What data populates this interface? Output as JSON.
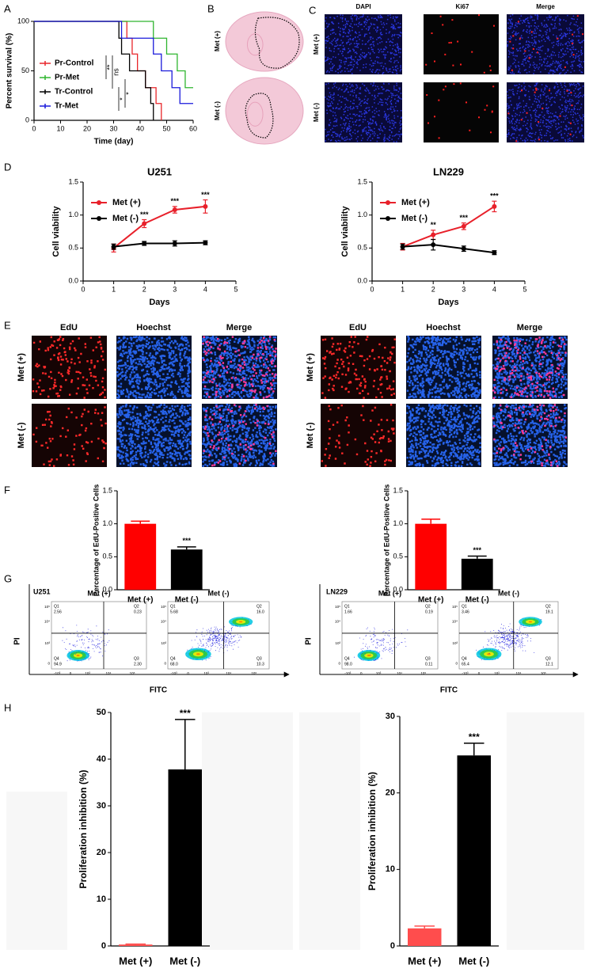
{
  "panel_labels": [
    "A",
    "B",
    "C",
    "D",
    "E",
    "F",
    "G",
    "H"
  ],
  "brain_images": {
    "rows": [
      "Met (+)",
      "Met (-)"
    ]
  },
  "ki67_images": {
    "columns": [
      "DAPI",
      "Ki67",
      "Merge"
    ],
    "rows": [
      "Met (+)",
      "Met (-)"
    ]
  },
  "edu_images": {
    "columns": [
      "EdU",
      "Hoechst",
      "Merge"
    ],
    "rows": [
      "Met (+)",
      "Met (-)"
    ]
  },
  "flow_cytometry": {
    "xlabel": "FITC",
    "ylabel": "PI",
    "quadrants": [
      "Q1",
      "Q2",
      "Q3",
      "Q4"
    ],
    "xticks": [
      "-10³",
      "0",
      "10³",
      "10⁴",
      "10⁵"
    ],
    "yticks": [
      "10⁵",
      "10⁴",
      "10³",
      "0"
    ],
    "groups": [
      {
        "name": "U251",
        "plots": [
          {
            "title": "Met (+)",
            "values": [
              "2.56",
              "0.23",
              "2.30",
              "94.9"
            ]
          },
          {
            "title": "Met (-)",
            "values": [
              "5.68",
              "16.0",
              "10.3",
              "68.0"
            ]
          }
        ]
      },
      {
        "name": "LN229",
        "plots": [
          {
            "title": "Met (+)",
            "values": [
              "1.66",
              "0.19",
              "0.11",
              "98.0"
            ]
          },
          {
            "title": "Met (-)",
            "values": [
              "3.46",
              "19.1",
              "12.1",
              "65.4"
            ]
          }
        ]
      }
    ]
  },
  "chart_data": [
    {
      "type": "step",
      "xlabel": "Time (day)",
      "ylabel": "Percent survival (%)",
      "xlim": [
        0,
        60
      ],
      "xticks": [
        0,
        10,
        20,
        30,
        40,
        50,
        60
      ],
      "ylim": [
        0,
        100
      ],
      "yticks": [
        0,
        50,
        100
      ],
      "legend": "lower left",
      "series": [
        {
          "name": "Pr-Control",
          "color": "#e8262a",
          "x": [
            0,
            35,
            35,
            37,
            37,
            39,
            39,
            42,
            42,
            46,
            46,
            48,
            48
          ],
          "values": [
            100,
            100,
            83,
            83,
            67,
            67,
            50,
            50,
            33,
            33,
            17,
            17,
            0
          ]
        },
        {
          "name": "Pr-Met",
          "color": "#2fb52f",
          "x": [
            0,
            45,
            45,
            50,
            50,
            54,
            54,
            57,
            57,
            60
          ],
          "values": [
            100,
            100,
            83,
            83,
            67,
            67,
            50,
            50,
            33,
            33
          ]
        },
        {
          "name": "Tr-Control",
          "color": "#000000",
          "x": [
            0,
            32,
            32,
            33,
            33,
            36,
            36,
            42,
            42,
            44,
            44,
            45,
            45
          ],
          "values": [
            100,
            100,
            83,
            83,
            67,
            67,
            50,
            50,
            33,
            33,
            17,
            17,
            0
          ]
        },
        {
          "name": "Tr-Met",
          "color": "#1a1adb",
          "x": [
            0,
            33,
            33,
            45,
            45,
            48,
            48,
            52,
            52,
            55,
            55,
            60
          ],
          "values": [
            100,
            100,
            83,
            83,
            67,
            67,
            50,
            50,
            33,
            33,
            17,
            17
          ]
        }
      ],
      "annotations": [
        {
          "text": "**"
        },
        {
          "text": "ns"
        },
        {
          "text": "*"
        },
        {
          "text": "*"
        }
      ]
    },
    {
      "type": "line",
      "title": "U251",
      "xlabel": "Days",
      "ylabel": "Cell viability",
      "x": [
        1,
        2,
        3,
        4
      ],
      "xlim": [
        0,
        5
      ],
      "xticks": [
        0,
        1,
        2,
        3,
        4,
        5
      ],
      "ylim": [
        0,
        1.5
      ],
      "yticks": [
        {
          "value": 0,
          "label": "0.0"
        },
        0.5,
        {
          "value": 1,
          "label": "1.0"
        },
        1.5
      ],
      "legend": "upper left",
      "series": [
        {
          "name": "Met (+)",
          "color": "#e8202a",
          "values": [
            0.5,
            0.87,
            1.08,
            1.13
          ],
          "errors": [
            0.06,
            0.06,
            0.05,
            0.1
          ]
        },
        {
          "name": "Met (-)",
          "color": "#000000",
          "values": [
            0.52,
            0.57,
            0.57,
            0.58
          ],
          "errors": [
            0.04,
            0.03,
            0.04,
            0.03
          ]
        }
      ],
      "annotations": [
        {
          "x": 2,
          "text": "***"
        },
        {
          "x": 3,
          "text": "***"
        },
        {
          "x": 4,
          "text": "***"
        }
      ]
    },
    {
      "type": "line",
      "title": "LN229",
      "xlabel": "Days",
      "ylabel": "Cell viability",
      "x": [
        1,
        2,
        3,
        4
      ],
      "xlim": [
        0,
        5
      ],
      "xticks": [
        0,
        1,
        2,
        3,
        4,
        5
      ],
      "ylim": [
        0,
        1.5
      ],
      "yticks": [
        {
          "value": 0,
          "label": "0.0"
        },
        0.5,
        {
          "value": 1,
          "label": "1.0"
        },
        1.5
      ],
      "legend": "upper left",
      "series": [
        {
          "name": "Met (+)",
          "color": "#e8202a",
          "values": [
            0.52,
            0.7,
            0.83,
            1.13
          ],
          "errors": [
            0.05,
            0.07,
            0.05,
            0.08
          ]
        },
        {
          "name": "Met (-)",
          "color": "#000000",
          "values": [
            0.52,
            0.55,
            0.49,
            0.43
          ],
          "errors": [
            0.04,
            0.08,
            0.04,
            0.03
          ]
        }
      ],
      "annotations": [
        {
          "x": 2,
          "text": "**"
        },
        {
          "x": 3,
          "text": "***"
        },
        {
          "x": 4,
          "text": "***"
        }
      ]
    },
    {
      "type": "bar",
      "ylabel": "Percentage of EdU-Positive Cells",
      "categories": [
        "Met (+)",
        "Met (-)"
      ],
      "values": [
        1.0,
        0.61
      ],
      "errors": [
        0.04,
        0.04
      ],
      "colors": [
        "#ff0000",
        "#000000"
      ],
      "ylim": [
        0,
        1.5
      ],
      "yticks": [
        {
          "value": 0,
          "label": "0.0"
        },
        0.5,
        {
          "value": 1,
          "label": "1.0"
        },
        1.5
      ],
      "annotations": [
        {
          "x": "Met (-)",
          "text": "***"
        }
      ]
    },
    {
      "type": "bar",
      "ylabel": "Percentage of EdU-Positive Cells",
      "categories": [
        "Met (+)",
        "Met (-)"
      ],
      "values": [
        1.0,
        0.47
      ],
      "errors": [
        0.07,
        0.04
      ],
      "colors": [
        "#ff0000",
        "#000000"
      ],
      "ylim": [
        0,
        1.5
      ],
      "yticks": [
        {
          "value": 0,
          "label": "0.0"
        },
        0.5,
        {
          "value": 1,
          "label": "1.0"
        },
        1.5
      ],
      "annotations": [
        {
          "x": "Met (-)",
          "text": "***"
        }
      ]
    },
    {
      "type": "bar",
      "ylabel": "Proliferation inhibition (%)",
      "categories": [
        "Met (+)",
        "Met (-)"
      ],
      "values": [
        0.3,
        37.8
      ],
      "errors": [
        0.1,
        10.7
      ],
      "colors": [
        "#ff4d4d",
        "#000000"
      ],
      "ylim": [
        0,
        50
      ],
      "yticks": [
        0,
        10,
        20,
        30,
        40,
        50
      ],
      "annotations": [
        {
          "x": "Met (-)",
          "text": "***"
        }
      ]
    },
    {
      "type": "bar",
      "ylabel": "Proliferation inhibition (%)",
      "categories": [
        "Met (+)",
        "Met (-)"
      ],
      "values": [
        2.3,
        24.9
      ],
      "errors": [
        0.3,
        1.6
      ],
      "colors": [
        "#ff4d4d",
        "#000000"
      ],
      "ylim": [
        0,
        30
      ],
      "yticks": [
        0,
        10,
        20,
        30
      ],
      "annotations": [
        {
          "x": "Met (-)",
          "text": "***"
        }
      ]
    }
  ]
}
